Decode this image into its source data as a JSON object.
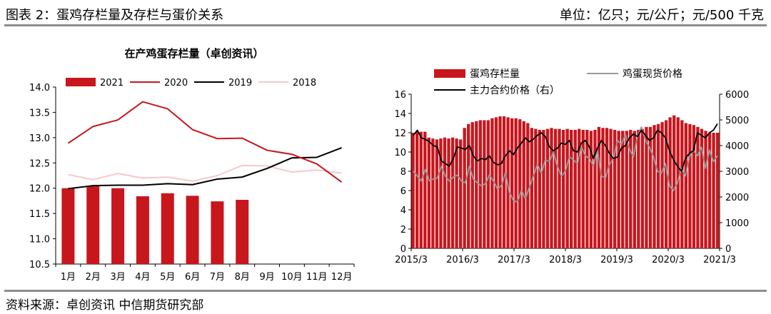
{
  "header": {
    "figure_title": "图表 2：蛋鸡存栏量及存栏与蛋价关系",
    "unit": "单位：亿只；元/公斤；元/500 千克"
  },
  "footer": {
    "source": "资料来源：卓创资讯 中信期货研究部"
  },
  "colors": {
    "red": "#c8161d",
    "black": "#000000",
    "pink": "#f4c9cb",
    "gray": "#9a9a9a"
  },
  "chart_data": [
    {
      "type": "bar+line",
      "title": "在产鸡蛋存栏量（卓创资讯）",
      "categories": [
        "1月",
        "2月",
        "3月",
        "4月",
        "5月",
        "6月",
        "7月",
        "8月",
        "9月",
        "10月",
        "11月",
        "12月"
      ],
      "ylim": [
        10.5,
        14.0
      ],
      "yticks": [
        "10.5",
        "11.0",
        "11.5",
        "12.0",
        "12.5",
        "13.0",
        "13.5",
        "14.0"
      ],
      "legend_position": "top",
      "series": [
        {
          "name": "2021",
          "type": "bar",
          "color": "#c8161d",
          "values": [
            12.0,
            12.05,
            12.0,
            11.84,
            11.9,
            11.85,
            11.74,
            11.77,
            null,
            null,
            null,
            null
          ]
        },
        {
          "name": "2020",
          "type": "line",
          "color": "#c8161d",
          "values": [
            12.89,
            13.22,
            13.35,
            13.71,
            13.57,
            13.16,
            12.98,
            12.99,
            12.75,
            12.67,
            12.48,
            12.12
          ]
        },
        {
          "name": "2019",
          "type": "line",
          "color": "#000000",
          "values": [
            11.99,
            12.05,
            12.06,
            12.06,
            12.09,
            12.07,
            12.18,
            12.22,
            12.39,
            12.6,
            12.61,
            12.8
          ]
        },
        {
          "name": "2018",
          "type": "line",
          "color": "#f4c9cb",
          "values": [
            12.27,
            12.17,
            12.29,
            12.2,
            12.22,
            12.14,
            12.25,
            12.45,
            12.44,
            12.32,
            12.36,
            12.3
          ]
        }
      ]
    },
    {
      "type": "bar+line",
      "title": "",
      "xticks": [
        "2015/3",
        "2016/3",
        "2017/3",
        "2018/3",
        "2019/3",
        "2020/3",
        "2021/3"
      ],
      "ylim_left": [
        0,
        16
      ],
      "yticks_left": [
        "0",
        "2",
        "4",
        "6",
        "8",
        "10",
        "12",
        "14",
        "16"
      ],
      "ylim_right": [
        0,
        6000
      ],
      "yticks_right": [
        "0",
        "1000",
        "2000",
        "3000",
        "4000",
        "5000",
        "6000"
      ],
      "legend_position": "top",
      "series": [
        {
          "name": "蛋鸡存栏量",
          "type": "bar",
          "axis": "left",
          "color": "#c8161d",
          "values": [
            12.0,
            12.1,
            12.1,
            12.1,
            11.5,
            11.4,
            11.3,
            11.4,
            11.5,
            11.4,
            11.5,
            11.4,
            11.3,
            12.5,
            12.9,
            13.1,
            13.2,
            13.3,
            13.3,
            13.3,
            13.5,
            13.6,
            13.7,
            13.7,
            13.6,
            13.5,
            13.5,
            13.4,
            13.2,
            13.0,
            12.5,
            12.4,
            12.3,
            12.3,
            12.4,
            12.5,
            12.4,
            12.4,
            12.3,
            12.4,
            12.3,
            12.3,
            12.4,
            12.3,
            12.3,
            12.2,
            12.3,
            12.6,
            12.5,
            12.5,
            12.4,
            12.3,
            12.2,
            12.2,
            12.2,
            12.3,
            12.2,
            12.3,
            12.4,
            12.6,
            12.6,
            12.8,
            12.9,
            13.1,
            13.3,
            13.6,
            13.8,
            13.6,
            13.3,
            13.0,
            12.9,
            12.8,
            12.6,
            12.4,
            12.2,
            12.0,
            12.0,
            12.0
          ]
        },
        {
          "name": "鸡蛋现货价格",
          "type": "line",
          "axis": "left",
          "color": "#9a9a9a",
          "values": [
            8.0,
            7.5,
            7.0,
            8.2,
            7.0,
            7.2,
            7.3,
            8.5,
            7.5,
            7.0,
            7.4,
            7.6,
            7.0,
            6.8,
            8.5,
            7.2,
            6.8,
            6.5,
            6.7,
            7.6,
            7.0,
            6.2,
            6.5,
            7.8,
            5.8,
            5.0,
            4.8,
            6.0,
            5.2,
            6.3,
            7.5,
            8.7,
            7.8,
            9.2,
            9.0,
            10.0,
            8.5,
            7.5,
            8.0,
            9.5,
            9.2,
            8.8,
            10.5,
            9.6,
            9.3,
            8.6,
            10.2,
            7.5,
            7.3,
            8.7,
            9.3,
            11.2,
            10.8,
            11.8,
            10.3,
            9.5,
            11.6,
            12.6,
            11.2,
            10.5,
            9.5,
            8.0,
            7.8,
            8.8,
            6.5,
            6.0,
            6.8,
            8.3,
            7.5,
            9.5,
            10.2,
            9.6,
            10.5,
            8.3,
            10.2,
            9.0,
            9.6
          ]
        },
        {
          "name": "主力合约价格（右）",
          "type": "line",
          "axis": "right",
          "color": "#000000",
          "values": [
            4400,
            4600,
            4300,
            4250,
            4150,
            4000,
            3950,
            3400,
            3300,
            3200,
            3500,
            3950,
            3900,
            3850,
            4000,
            3600,
            3400,
            3500,
            3450,
            3600,
            3350,
            3250,
            3300,
            3600,
            3800,
            3650,
            3900,
            4100,
            4300,
            4150,
            4250,
            4400,
            4500,
            4350,
            3950,
            3800,
            3900,
            4100,
            4050,
            4200,
            3800,
            3750,
            4100,
            4200,
            3950,
            3500,
            3900,
            4200,
            4000,
            3700,
            3500,
            3550,
            3900,
            4000,
            4300,
            4450,
            4350,
            4600,
            4400,
            4200,
            4300,
            4600,
            4500,
            4300,
            3800,
            3450,
            3200,
            3000,
            3500,
            3700,
            3800,
            4500,
            4400,
            4300,
            4500,
            4600,
            4850
          ]
        }
      ]
    }
  ]
}
